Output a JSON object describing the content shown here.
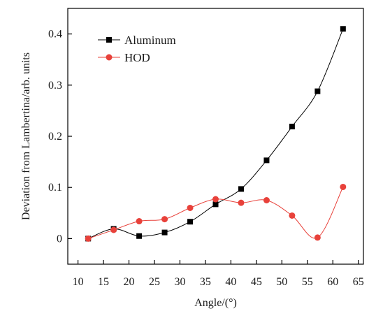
{
  "chart_data": {
    "type": "line",
    "title": "",
    "xlabel": "Angle/(°)",
    "ylabel": "Deviation from Lambertina/arb. units",
    "xlim": [
      8,
      66
    ],
    "ylim": [
      -0.05,
      0.45
    ],
    "xticks": [
      10,
      15,
      20,
      25,
      30,
      35,
      40,
      45,
      50,
      55,
      60,
      65
    ],
    "yticks": [
      0,
      0.1,
      0.2,
      0.3,
      0.4
    ],
    "ytick_labels": [
      "0",
      "0.1",
      "0.2",
      "0.3",
      "0.4"
    ],
    "grid": false,
    "legend_position": "top-left",
    "series": [
      {
        "name": "Aluminum",
        "color": "#000000",
        "marker": "square",
        "x": [
          12,
          17,
          22,
          27,
          32,
          37,
          42,
          47,
          52,
          57,
          62
        ],
        "y": [
          0.0,
          0.019,
          0.005,
          0.012,
          0.033,
          0.067,
          0.097,
          0.153,
          0.219,
          0.288,
          0.41
        ]
      },
      {
        "name": "HOD",
        "color": "#e8413a",
        "marker": "circle",
        "x": [
          12,
          17,
          22,
          27,
          32,
          37,
          42,
          47,
          52,
          57,
          62
        ],
        "y": [
          0.0,
          0.017,
          0.034,
          0.038,
          0.06,
          0.077,
          0.07,
          0.075,
          0.045,
          0.002,
          0.101
        ]
      }
    ]
  }
}
